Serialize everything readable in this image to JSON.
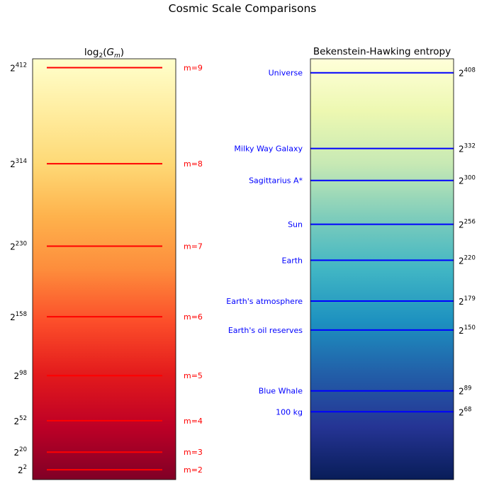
{
  "figure": {
    "title": "Cosmic Scale Comparisons"
  },
  "chart_data": [
    {
      "type": "line",
      "title": "log₂(G_m)",
      "title_math": {
        "prefix": "log",
        "sub": "2",
        "arg": "G",
        "arg_sub": "m"
      },
      "xlabel": "",
      "ylabel": "",
      "colormap": "YlOrRd",
      "line_color": "#ff0000",
      "label_color": "#ff0000",
      "series": [
        {
          "label": "m=9",
          "exponent": 412
        },
        {
          "label": "m=8",
          "exponent": 314
        },
        {
          "label": "m=7",
          "exponent": 230
        },
        {
          "label": "m=6",
          "exponent": 158
        },
        {
          "label": "m=5",
          "exponent": 98
        },
        {
          "label": "m=4",
          "exponent": 52
        },
        {
          "label": "m=3",
          "exponent": 20
        },
        {
          "label": "m=2",
          "exponent": 2
        }
      ],
      "tick_labels": [
        {
          "base": "2",
          "exp": "412"
        },
        {
          "base": "2",
          "exp": "314"
        },
        {
          "base": "2",
          "exp": "230"
        },
        {
          "base": "2",
          "exp": "158"
        },
        {
          "base": "2",
          "exp": "98"
        },
        {
          "base": "2",
          "exp": "52"
        },
        {
          "base": "2",
          "exp": "20"
        },
        {
          "base": "2",
          "exp": "2"
        }
      ],
      "ylim_exponent": [
        -8,
        421
      ],
      "yscale": "log2",
      "tick_side": "left",
      "label_side": "right"
    },
    {
      "type": "line",
      "title": "Bekenstein-Hawking entropy",
      "xlabel": "",
      "ylabel": "",
      "colormap": "YlGnBu",
      "line_color": "#0000ff",
      "label_color": "#0000ff",
      "series": [
        {
          "label": "Universe",
          "exponent": 408
        },
        {
          "label": "Milky Way Galaxy",
          "exponent": 332
        },
        {
          "label": "Sagittarius A*",
          "exponent": 300
        },
        {
          "label": "Sun",
          "exponent": 256
        },
        {
          "label": "Earth",
          "exponent": 220
        },
        {
          "label": "Earth's atmosphere",
          "exponent": 179
        },
        {
          "label": "Earth's oil reserves",
          "exponent": 150
        },
        {
          "label": "Blue Whale",
          "exponent": 89
        },
        {
          "label": "100 kg",
          "exponent": 68
        }
      ],
      "tick_labels": [
        {
          "base": "2",
          "exp": "408"
        },
        {
          "base": "2",
          "exp": "332"
        },
        {
          "base": "2",
          "exp": "300"
        },
        {
          "base": "2",
          "exp": "256"
        },
        {
          "base": "2",
          "exp": "220"
        },
        {
          "base": "2",
          "exp": "179"
        },
        {
          "base": "2",
          "exp": "150"
        },
        {
          "base": "2",
          "exp": "89"
        },
        {
          "base": "2",
          "exp": "68"
        }
      ],
      "ylim_exponent": [
        0,
        422
      ],
      "yscale": "log2",
      "tick_side": "right",
      "label_side": "left"
    }
  ]
}
